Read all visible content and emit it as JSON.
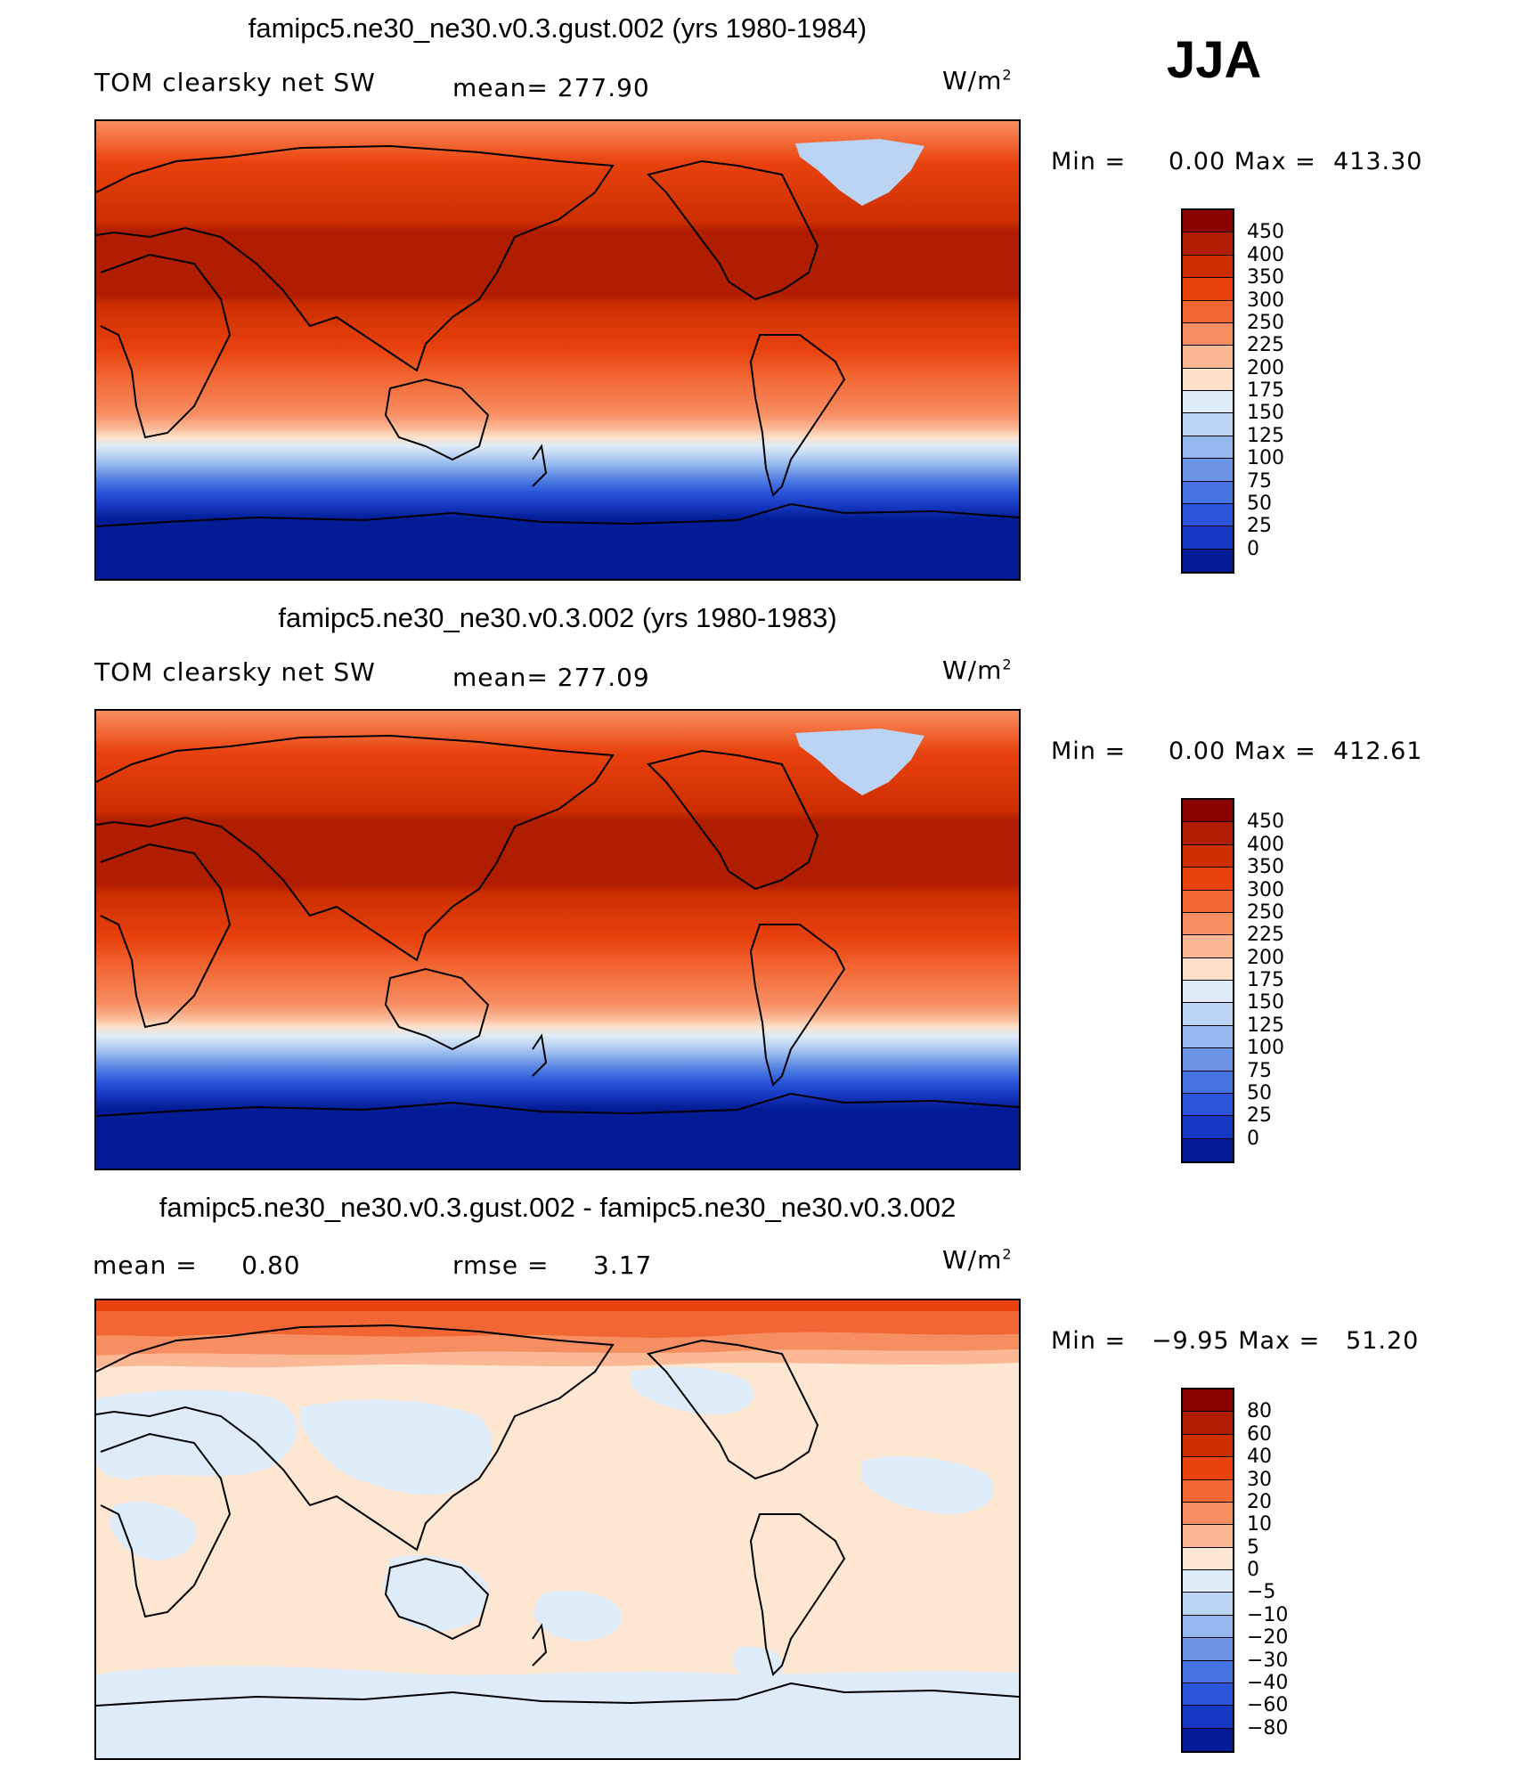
{
  "season": "JJA",
  "panels": [
    {
      "id": "p1",
      "title": "famipc5.ne30_ne30.v0.3.gust.002 (yrs 1980-1984)",
      "left_label": "TOM clearsky net SW",
      "center_label": "mean= 277.90",
      "units_label": "W/m",
      "units_sup": "2",
      "min_label": "Min =",
      "min_value": "0.00",
      "max_label": "Max =",
      "max_value": "413.30",
      "colorbar_labels": [
        "450",
        "400",
        "350",
        "300",
        "250",
        "225",
        "200",
        "175",
        "150",
        "125",
        "100",
        "75",
        "50",
        "25",
        "0"
      ],
      "colorbar_colors": [
        "#8b0000",
        "#b01d00",
        "#cc2e00",
        "#e8420e",
        "#f26633",
        "#f78e62",
        "#fbb895",
        "#fde0c8",
        "#deebf8",
        "#bcd4f4",
        "#94b7ee",
        "#6b93e6",
        "#4574e2",
        "#2a55db",
        "#1638c2",
        "#031b94"
      ]
    },
    {
      "id": "p2",
      "title": "famipc5.ne30_ne30.v0.3.002 (yrs 1980-1983)",
      "left_label": "TOM clearsky net SW",
      "center_label": "mean= 277.09",
      "units_label": "W/m",
      "units_sup": "2",
      "min_label": "Min =",
      "min_value": "0.00",
      "max_label": "Max =",
      "max_value": "412.61",
      "colorbar_labels": [
        "450",
        "400",
        "350",
        "300",
        "250",
        "225",
        "200",
        "175",
        "150",
        "125",
        "100",
        "75",
        "50",
        "25",
        "0"
      ],
      "colorbar_colors": [
        "#8b0000",
        "#b01d00",
        "#cc2e00",
        "#e8420e",
        "#f26633",
        "#f78e62",
        "#fbb895",
        "#fde0c8",
        "#deebf8",
        "#bcd4f4",
        "#94b7ee",
        "#6b93e6",
        "#4574e2",
        "#2a55db",
        "#1638c2",
        "#031b94"
      ]
    },
    {
      "id": "p3",
      "title": "famipc5.ne30_ne30.v0.3.gust.002 - famipc5.ne30_ne30.v0.3.002",
      "left_label": "mean =     0.80",
      "center_label": "rmse =     3.17",
      "units_label": "W/m",
      "units_sup": "2",
      "min_label": "Min =",
      "min_value": "−9.95",
      "max_label": "Max =",
      "max_value": "51.20",
      "colorbar_labels": [
        "80",
        "60",
        "40",
        "30",
        "20",
        "10",
        "5",
        "0",
        "−5",
        "−10",
        "−20",
        "−30",
        "−40",
        "−60",
        "−80"
      ],
      "colorbar_colors": [
        "#8b0000",
        "#b01d00",
        "#cc2e00",
        "#e8420e",
        "#f26633",
        "#f78e62",
        "#fbb895",
        "#fde6d2",
        "#deebf8",
        "#bcd4f4",
        "#94b7ee",
        "#6b93e6",
        "#4574e2",
        "#2a55db",
        "#1638c2",
        "#031b94"
      ]
    }
  ]
}
